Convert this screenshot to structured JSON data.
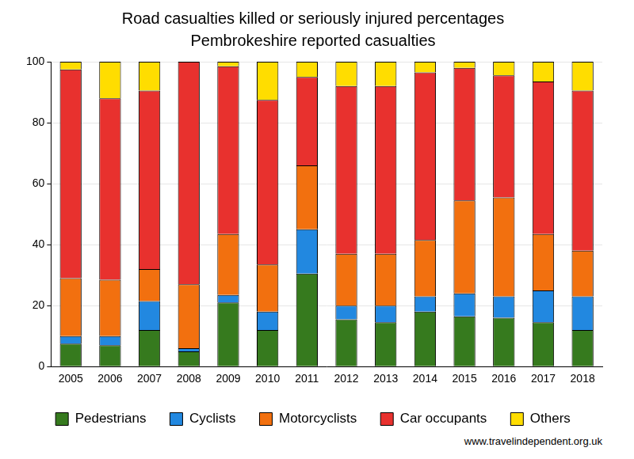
{
  "chart_data": {
    "type": "bar",
    "title": "Road casualties killed or seriously injured percentages",
    "subtitle": "Pembrokeshire reported casualties",
    "source": "www.travelindependent.org.uk",
    "categories": [
      "2005",
      "2006",
      "2007",
      "2008",
      "2009",
      "2010",
      "2011",
      "2012",
      "2013",
      "2014",
      "2015",
      "2016",
      "2017",
      "2018"
    ],
    "series": [
      {
        "name": "Pedestrians",
        "color": "#367a1e",
        "values": [
          7.5,
          7,
          12,
          5,
          21,
          12,
          30.5,
          15.5,
          14.5,
          18,
          16.5,
          16,
          14.5,
          12
        ]
      },
      {
        "name": "Cyclists",
        "color": "#2288e0",
        "values": [
          2.5,
          3,
          9.5,
          1,
          2.5,
          6,
          14.5,
          4.5,
          5.5,
          5,
          7.5,
          7,
          10.5,
          11
        ]
      },
      {
        "name": "Motorcyclists",
        "color": "#f2700f",
        "values": [
          19,
          18.5,
          10.5,
          21,
          20,
          15.5,
          21,
          17,
          17,
          18.5,
          30.5,
          32.5,
          18.5,
          15
        ]
      },
      {
        "name": "Car occupants",
        "color": "#e8312e",
        "values": [
          68.5,
          59.5,
          58.5,
          73,
          55,
          54,
          29,
          55,
          55,
          55,
          43.5,
          40,
          50,
          52.5
        ]
      },
      {
        "name": "Others",
        "color": "#ffdd00",
        "values": [
          2.5,
          12,
          9.5,
          0,
          1.5,
          12.5,
          5,
          8,
          8,
          3.5,
          2,
          4.5,
          6.5,
          9.5
        ]
      }
    ],
    "ylim": [
      0,
      100
    ],
    "yticks": [
      0,
      20,
      40,
      60,
      80,
      100
    ],
    "stacked": true,
    "grid": true,
    "legend": "bottom"
  }
}
